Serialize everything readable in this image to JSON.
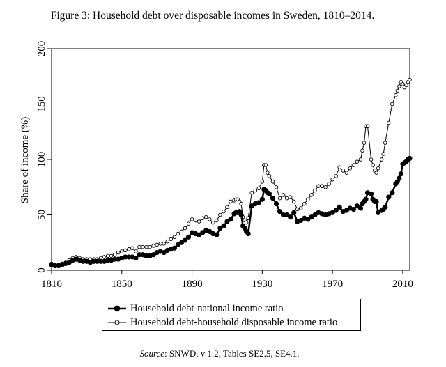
{
  "chart_data": {
    "type": "line",
    "title": "Figure 3: Household debt over disposable incomes in Sweden, 1810–2014.",
    "xlabel": "",
    "ylabel": "Share of income (%)",
    "xlim": [
      1810,
      2014
    ],
    "ylim": [
      0,
      200
    ],
    "xticks": [
      "1810",
      "1850",
      "1890",
      "1930",
      "1970",
      "2010"
    ],
    "yticks": [
      "0",
      "50",
      "100",
      "150",
      "200"
    ],
    "grid": false,
    "legend": "bottom",
    "series": [
      {
        "name": "Household debt-national income ratio",
        "marker": "filled-circle",
        "color": "#000000",
        "x": [
          1810,
          1812,
          1814,
          1816,
          1818,
          1820,
          1822,
          1824,
          1826,
          1828,
          1830,
          1832,
          1834,
          1836,
          1838,
          1840,
          1842,
          1844,
          1846,
          1848,
          1850,
          1852,
          1854,
          1856,
          1858,
          1860,
          1862,
          1864,
          1866,
          1868,
          1870,
          1872,
          1874,
          1876,
          1878,
          1880,
          1882,
          1884,
          1886,
          1888,
          1890,
          1892,
          1894,
          1896,
          1898,
          1900,
          1902,
          1904,
          1906,
          1908,
          1910,
          1912,
          1914,
          1915,
          1916,
          1917,
          1918,
          1919,
          1920,
          1921,
          1922,
          1924,
          1926,
          1928,
          1930,
          1931,
          1932,
          1933,
          1934,
          1936,
          1938,
          1940,
          1942,
          1944,
          1946,
          1948,
          1950,
          1952,
          1954,
          1956,
          1958,
          1960,
          1962,
          1964,
          1966,
          1968,
          1970,
          1972,
          1974,
          1976,
          1978,
          1980,
          1982,
          1984,
          1986,
          1987,
          1988,
          1989,
          1990,
          1992,
          1993,
          1994,
          1995,
          1996,
          1998,
          1999,
          2000,
          2002,
          2004,
          2006,
          2007,
          2008,
          2009,
          2010,
          2011,
          2012,
          2013,
          2014
        ],
        "values": [
          5,
          4,
          4,
          5,
          6,
          7,
          9,
          10,
          9,
          8,
          8,
          7,
          8,
          8,
          8,
          8,
          9,
          9,
          10,
          10,
          11,
          12,
          12,
          12,
          11,
          14,
          14,
          13,
          13,
          14,
          16,
          17,
          16,
          18,
          19,
          20,
          23,
          25,
          27,
          30,
          34,
          33,
          32,
          34,
          36,
          35,
          33,
          32,
          38,
          40,
          44,
          46,
          51,
          52,
          52,
          53,
          50,
          40,
          38,
          35,
          33,
          58,
          60,
          61,
          64,
          73,
          72,
          70,
          69,
          65,
          60,
          53,
          50,
          50,
          48,
          52,
          44,
          45,
          47,
          46,
          48,
          50,
          52,
          51,
          50,
          51,
          52,
          54,
          57,
          53,
          54,
          56,
          55,
          58,
          56,
          60,
          62,
          64,
          70,
          69,
          64,
          62,
          62,
          52,
          54,
          55,
          57,
          66,
          70,
          78,
          80,
          83,
          87,
          96,
          97,
          98,
          100,
          101
        ]
      },
      {
        "name": "Household debt-household disposable income ratio",
        "marker": "open-circle",
        "color": "#000000",
        "x": [
          1810,
          1812,
          1814,
          1816,
          1818,
          1820,
          1822,
          1824,
          1826,
          1828,
          1830,
          1832,
          1834,
          1836,
          1838,
          1840,
          1842,
          1844,
          1846,
          1848,
          1850,
          1852,
          1854,
          1856,
          1858,
          1860,
          1862,
          1864,
          1866,
          1868,
          1870,
          1872,
          1874,
          1876,
          1878,
          1880,
          1882,
          1884,
          1886,
          1888,
          1890,
          1892,
          1894,
          1896,
          1898,
          1900,
          1902,
          1904,
          1906,
          1908,
          1910,
          1912,
          1914,
          1915,
          1916,
          1917,
          1918,
          1919,
          1920,
          1921,
          1922,
          1924,
          1926,
          1928,
          1930,
          1931,
          1932,
          1933,
          1934,
          1936,
          1938,
          1940,
          1942,
          1944,
          1946,
          1948,
          1950,
          1952,
          1954,
          1956,
          1958,
          1960,
          1962,
          1964,
          1966,
          1968,
          1970,
          1972,
          1974,
          1976,
          1978,
          1980,
          1982,
          1984,
          1986,
          1987,
          1988,
          1989,
          1990,
          1992,
          1993,
          1994,
          1995,
          1996,
          1998,
          1999,
          2000,
          2002,
          2004,
          2006,
          2007,
          2008,
          2009,
          2010,
          2011,
          2012,
          2013,
          2014
        ],
        "values": [
          6,
          5,
          5,
          6,
          7,
          9,
          11,
          12,
          11,
          10,
          10,
          10,
          10,
          10,
          11,
          12,
          13,
          13,
          14,
          16,
          17,
          18,
          19,
          20,
          17,
          21,
          21,
          21,
          21,
          22,
          23,
          24,
          24,
          26,
          28,
          30,
          33,
          35,
          38,
          42,
          46,
          45,
          44,
          47,
          48,
          46,
          43,
          45,
          50,
          53,
          57,
          62,
          63,
          64,
          64,
          62,
          60,
          48,
          45,
          43,
          47,
          70,
          72,
          74,
          80,
          95,
          95,
          88,
          85,
          80,
          75,
          65,
          68,
          65,
          66,
          62,
          55,
          56,
          60,
          64,
          68,
          72,
          76,
          76,
          75,
          78,
          82,
          85,
          93,
          90,
          88,
          92,
          95,
          98,
          100,
          108,
          115,
          130,
          130,
          100,
          95,
          90,
          88,
          92,
          100,
          105,
          115,
          133,
          150,
          158,
          162,
          166,
          170,
          168,
          165,
          167,
          170,
          172
        ]
      }
    ]
  },
  "source": {
    "label": "Source",
    "text": ": SNWD, v 1.2, Tables SE2.5, SE4.1."
  }
}
